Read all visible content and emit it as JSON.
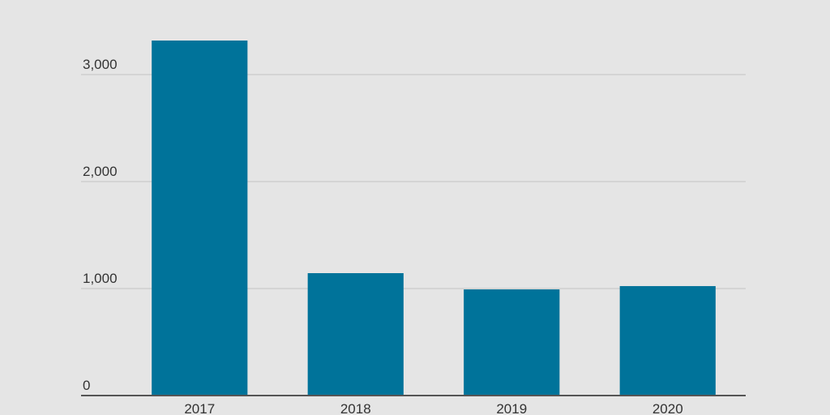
{
  "chart_data": {
    "type": "bar",
    "categories": [
      "2017",
      "2018",
      "2019",
      "2020"
    ],
    "values": [
      3318,
      1144,
      992,
      1023
    ],
    "color": "#00739a",
    "ylim": [
      0,
      3400
    ],
    "yticks": [
      0,
      {
        "value": 1000,
        "label": "1,000"
      },
      {
        "value": 2000,
        "label": "2,000"
      },
      {
        "value": 3000,
        "label": "3,000"
      }
    ],
    "grid": true
  }
}
